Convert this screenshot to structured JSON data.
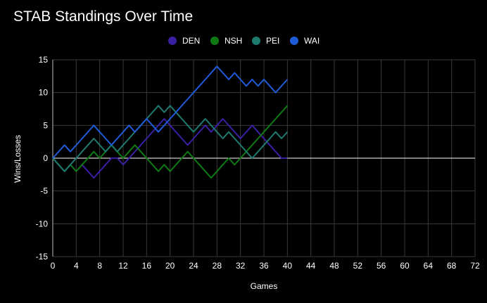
{
  "chart_data": {
    "type": "line",
    "title": "STAB Standings Over Time",
    "xlabel": "Games",
    "ylabel": "Wins/Losses",
    "xlim": [
      0,
      72
    ],
    "ylim": [
      -15,
      15
    ],
    "xticks": [
      0,
      4,
      8,
      12,
      16,
      20,
      24,
      28,
      32,
      36,
      40,
      44,
      48,
      52,
      56,
      60,
      64,
      68,
      72
    ],
    "yticks": [
      15,
      10,
      5,
      0,
      -5,
      -10,
      -15
    ],
    "grid": true,
    "legend_position": "top",
    "x": [
      0,
      1,
      2,
      3,
      4,
      5,
      6,
      7,
      8,
      9,
      10,
      11,
      12,
      13,
      14,
      15,
      16,
      17,
      18,
      19,
      20,
      21,
      22,
      23,
      24,
      25,
      26,
      27,
      28,
      29,
      30,
      31,
      32,
      33,
      34,
      35,
      36,
      37,
      38,
      39,
      40
    ],
    "series": [
      {
        "name": "DEN",
        "color": "#3b1fa3",
        "values": [
          0,
          -1,
          -2,
          -1,
          -2,
          -1,
          -2,
          -3,
          -2,
          -1,
          0,
          0,
          -1,
          0,
          1,
          2,
          3,
          4,
          5,
          6,
          5,
          4,
          3,
          2,
          3,
          4,
          5,
          4,
          5,
          6,
          5,
          4,
          3,
          4,
          5,
          4,
          3,
          2,
          1,
          0,
          0
        ]
      },
      {
        "name": "NSH",
        "color": "#0f7a14",
        "values": [
          0,
          -1,
          -2,
          -1,
          -2,
          -1,
          0,
          1,
          0,
          1,
          2,
          1,
          0,
          1,
          2,
          1,
          0,
          -1,
          -2,
          -1,
          -2,
          -1,
          0,
          1,
          0,
          -1,
          -2,
          -3,
          -2,
          -1,
          0,
          -1,
          0,
          1,
          2,
          3,
          4,
          5,
          6,
          7,
          8
        ]
      },
      {
        "name": "PEI",
        "color": "#1e7a6e",
        "values": [
          0,
          -1,
          -2,
          -1,
          0,
          1,
          2,
          3,
          2,
          1,
          2,
          1,
          2,
          3,
          4,
          5,
          6,
          7,
          8,
          7,
          8,
          7,
          6,
          5,
          4,
          5,
          6,
          5,
          4,
          3,
          4,
          3,
          2,
          1,
          0,
          1,
          2,
          3,
          4,
          3,
          4
        ]
      },
      {
        "name": "WAI",
        "color": "#1f5bd6",
        "values": [
          0,
          1,
          2,
          1,
          2,
          3,
          4,
          5,
          4,
          3,
          2,
          3,
          4,
          5,
          4,
          5,
          6,
          5,
          4,
          5,
          6,
          7,
          8,
          9,
          10,
          11,
          12,
          13,
          14,
          13,
          12,
          13,
          12,
          11,
          12,
          11,
          12,
          11,
          10,
          11,
          12
        ]
      }
    ]
  }
}
